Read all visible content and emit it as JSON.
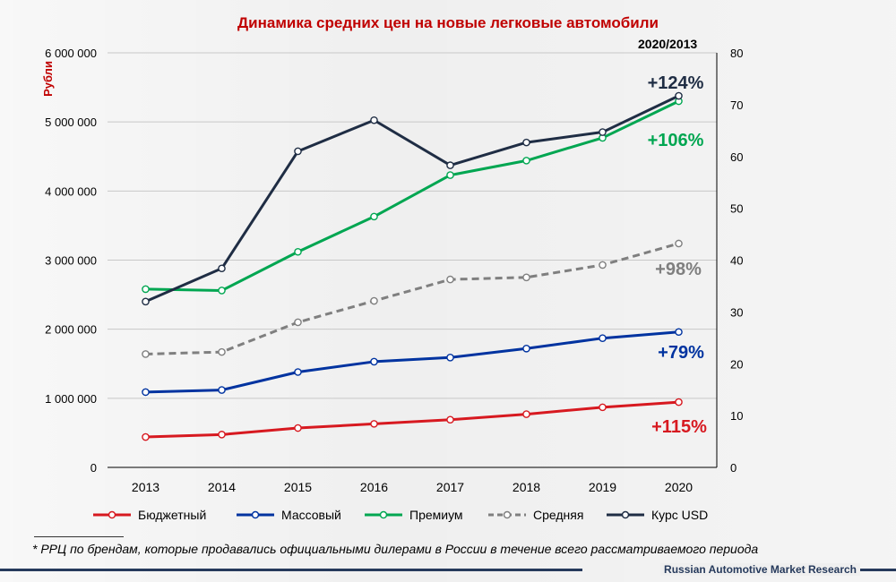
{
  "title": "Динамика средних цен на новые легковые автомобили",
  "period_label": "2020/2013",
  "footnote": "* РРЦ по брендам, которые продавались официальными дилерами в России в течение всего рассматриваемого периода",
  "brand": "Russian Automotive Market Research",
  "colors": {
    "budget": "#d71920",
    "mass": "#0033a0",
    "premium": "#00a651",
    "average": "#7f7f7f",
    "usd": "#1f2d44",
    "title": "#c00000"
  },
  "chart_data": {
    "type": "line",
    "title": "Динамика средних цен на новые легковые автомобили",
    "ylabel": "Рубли",
    "x": [
      "2013",
      "2014",
      "2015",
      "2016",
      "2017",
      "2018",
      "2019",
      "2020"
    ],
    "ylim_left": [
      0,
      6000000
    ],
    "yticks_left": [
      "0",
      "1 000 000",
      "2 000 000",
      "3 000 000",
      "4 000 000",
      "5 000 000",
      "6 000 000"
    ],
    "ylim_right": [
      0,
      80
    ],
    "yticks_right": [
      "0",
      "10",
      "20",
      "30",
      "40",
      "50",
      "60",
      "70",
      "80"
    ],
    "grid": true,
    "legend_position": "bottom",
    "series": [
      {
        "name": "Бюджетный",
        "axis": "left",
        "style": "solid",
        "color": "#d71920",
        "values": [
          440000,
          475000,
          570000,
          630000,
          690000,
          770000,
          870000,
          945000
        ],
        "change_label": "+115%"
      },
      {
        "name": "Массовый",
        "axis": "left",
        "style": "solid",
        "color": "#0033a0",
        "values": [
          1090000,
          1120000,
          1380000,
          1530000,
          1590000,
          1720000,
          1870000,
          1960000
        ],
        "change_label": "+79%"
      },
      {
        "name": "Премиум",
        "axis": "left",
        "style": "solid",
        "color": "#00a651",
        "values": [
          2580000,
          2560000,
          3120000,
          3630000,
          4230000,
          4440000,
          4770000,
          5300000
        ],
        "change_label": "+106%"
      },
      {
        "name": "Средняя",
        "axis": "left",
        "style": "dashed",
        "color": "#7f7f7f",
        "values": [
          1640000,
          1670000,
          2100000,
          2410000,
          2720000,
          2750000,
          2930000,
          3240000
        ],
        "change_label": "+98%"
      },
      {
        "name": "Курс USD",
        "axis": "right",
        "style": "solid",
        "color": "#1f2d44",
        "values": [
          32,
          38.4,
          61,
          67,
          58.3,
          62.7,
          64.7,
          71.7
        ],
        "change_label": "+124%"
      }
    ]
  }
}
